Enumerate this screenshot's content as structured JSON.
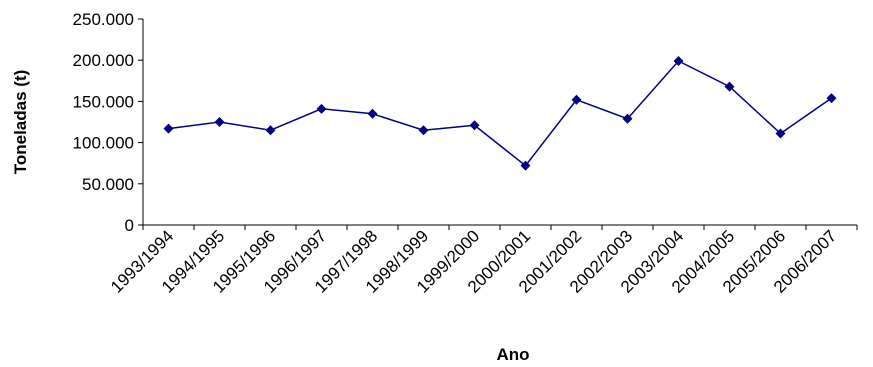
{
  "chart_data": {
    "type": "line",
    "title": "",
    "xlabel": "Ano",
    "ylabel": "Toneladas (t)",
    "categories": [
      "1993/1994",
      "1994/1995",
      "1995/1996",
      "1996/1997",
      "1997/1998",
      "1998/1999",
      "1999/2000",
      "2000/2001",
      "2001/2002",
      "2002/2003",
      "2003/2004",
      "2004/2005",
      "2005/2006",
      "2006/2007"
    ],
    "series": [
      {
        "values": [
          117000,
          125000,
          115000,
          141000,
          135000,
          115000,
          121000,
          72000,
          152000,
          129000,
          199000,
          168000,
          111000,
          154000
        ]
      }
    ],
    "ylim": [
      0,
      250000
    ],
    "yticks": [
      0,
      50000,
      100000,
      150000,
      200000,
      250000
    ],
    "ytick_labels": [
      "0",
      "50.000",
      "100.000",
      "150.000",
      "200.000",
      "250.000"
    ],
    "grid": false,
    "legend": "none",
    "colors": {
      "line": "#000080",
      "marker": "#000080",
      "axis": "#000000"
    }
  }
}
